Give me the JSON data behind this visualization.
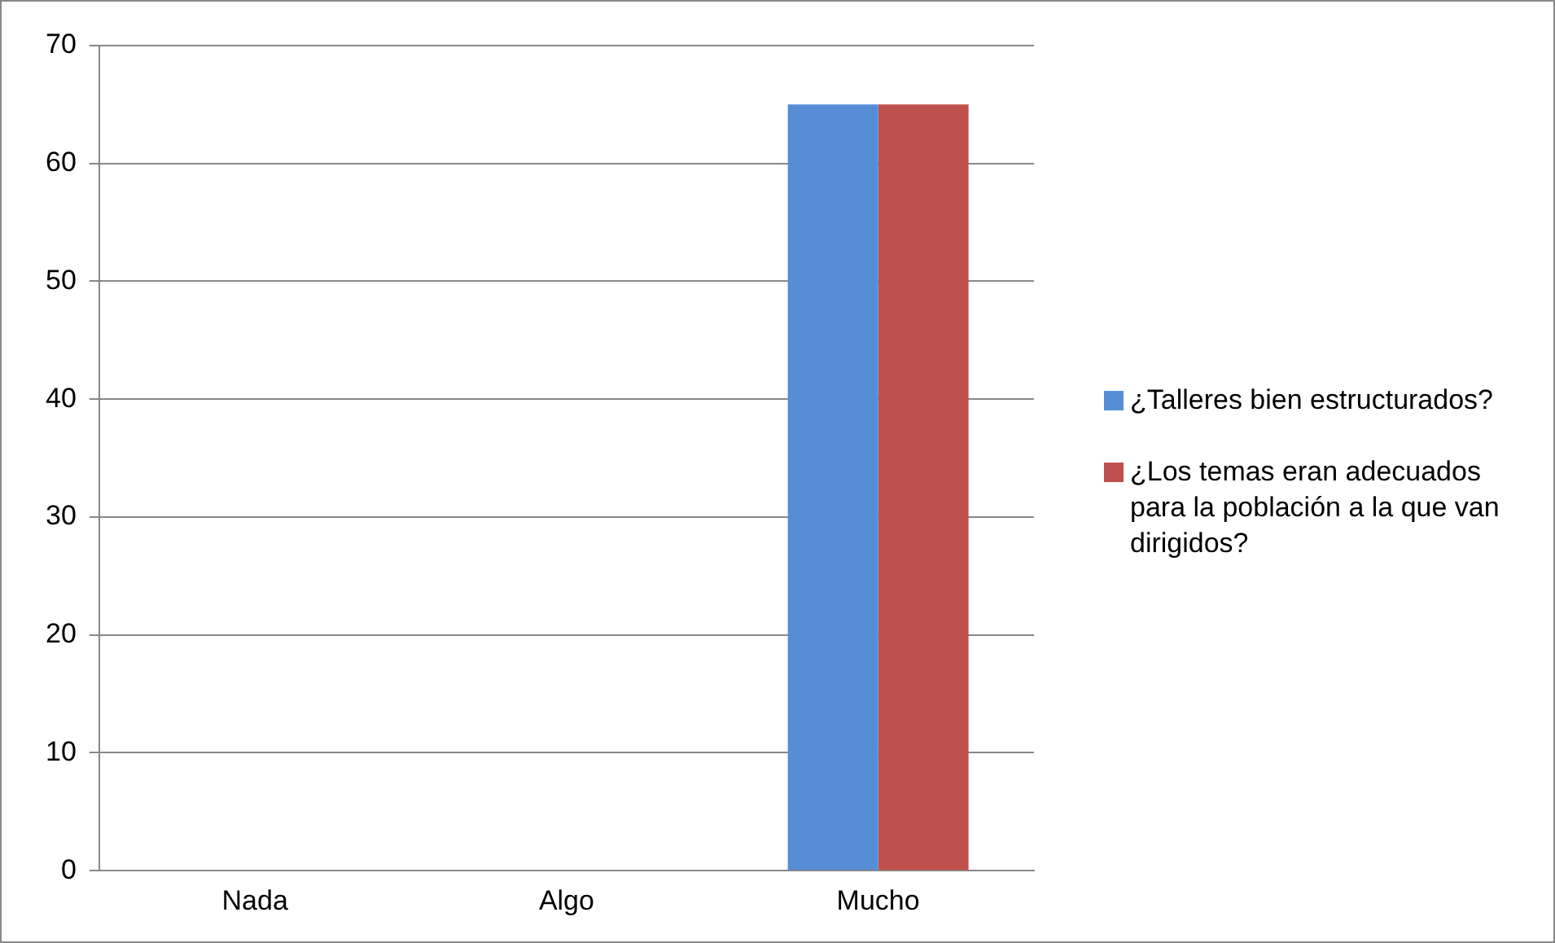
{
  "chart_data": {
    "type": "bar",
    "categories": [
      "Nada",
      "Algo",
      "Mucho"
    ],
    "series": [
      {
        "name": "¿Talleres bien estructurados?",
        "color": "#558ed5",
        "values": [
          0,
          0,
          65
        ]
      },
      {
        "name": "¿Los temas eran adecuados para la población a la que van dirigidos?",
        "color": "#c0504d",
        "values": [
          0,
          0,
          65
        ]
      }
    ],
    "ylim": [
      0,
      70
    ],
    "yticks": [
      0,
      10,
      20,
      30,
      40,
      50,
      60,
      70
    ],
    "grid": "y",
    "legend": "right"
  }
}
